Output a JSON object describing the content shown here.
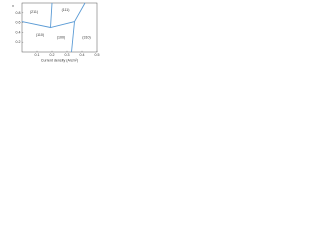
{
  "chart_data": {
    "type": "phase",
    "xlabel": "Current density (A/cm²)",
    "ylabel": "x",
    "xlim": [
      0,
      0.5
    ],
    "ylim": [
      0,
      1
    ],
    "xticks": [
      0.1,
      0.2,
      0.3,
      0.4,
      0.5
    ],
    "yticks": [
      0.2,
      0.4,
      0.6,
      0.8
    ],
    "color": "#5b9bd5",
    "boundaries": [
      {
        "x": [
          0.2,
          0.19,
          0.35,
          0.42
        ],
        "values": [
          1,
          0.5,
          0.62,
          1
        ]
      },
      {
        "x": [
          0.35,
          0.33
        ],
        "values": [
          0.62,
          0
        ]
      },
      {
        "x": [
          0,
          0.19
        ],
        "values": [
          0.62,
          0.5
        ]
      }
    ],
    "annotations": [
      {
        "text": "(211)",
        "x": 0.08,
        "y": 0.82
      },
      {
        "text": "(111)",
        "x": 0.29,
        "y": 0.86
      },
      {
        "text": "(110)",
        "x": 0.12,
        "y": 0.35
      },
      {
        "text": "(100)",
        "x": 0.26,
        "y": 0.3
      },
      {
        "text": "(310)",
        "x": 0.43,
        "y": 0.3
      }
    ]
  }
}
